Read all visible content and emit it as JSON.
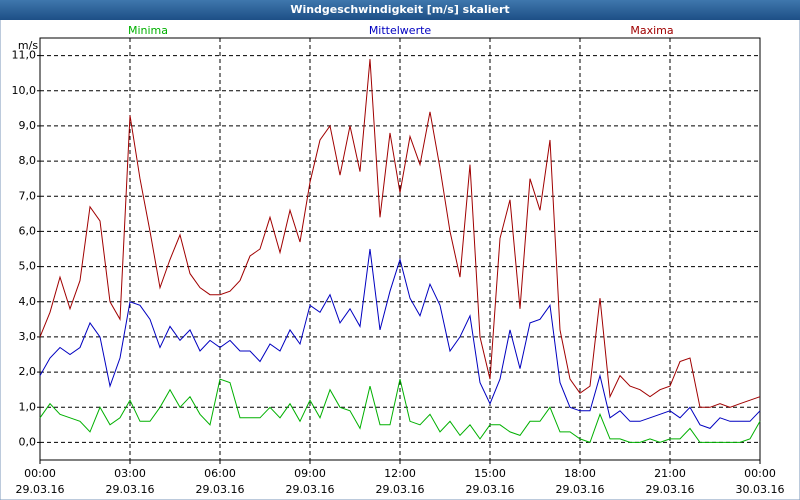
{
  "chart_data": {
    "type": "line",
    "title": "Windgeschwindigkeit [m/s] skaliert",
    "y_label": "m/s",
    "x": [
      0,
      20,
      40,
      60,
      80,
      100,
      120,
      140,
      160,
      180,
      200,
      220,
      240,
      260,
      280,
      300,
      320,
      340,
      360,
      380,
      400,
      420,
      440,
      460,
      480,
      500,
      520,
      540,
      560,
      580,
      600,
      620,
      640,
      660,
      680,
      700,
      720,
      740,
      760,
      780,
      800,
      820,
      840,
      860,
      880,
      900,
      920,
      940,
      960,
      980,
      1000,
      1020,
      1040,
      1060,
      1080,
      1100,
      1120,
      1140,
      1160,
      1180,
      1200,
      1220,
      1240,
      1260,
      1280,
      1300,
      1320,
      1340,
      1360,
      1380,
      1400,
      1420,
      1440
    ],
    "xlim": [
      0,
      1440
    ],
    "xticks": [
      {
        "value": 0,
        "label": [
          "00:00",
          "29.03.16"
        ]
      },
      {
        "value": 180,
        "label": [
          "03:00",
          "29.03.16"
        ]
      },
      {
        "value": 360,
        "label": [
          "06:00",
          "29.03.16"
        ]
      },
      {
        "value": 540,
        "label": [
          "09:00",
          "29.03.16"
        ]
      },
      {
        "value": 720,
        "label": [
          "12:00",
          "29.03.16"
        ]
      },
      {
        "value": 900,
        "label": [
          "15:00",
          "29.03.16"
        ]
      },
      {
        "value": 1080,
        "label": [
          "18:00",
          "29.03.16"
        ]
      },
      {
        "value": 1260,
        "label": [
          "21:00",
          "29.03.16"
        ]
      },
      {
        "value": 1440,
        "label": [
          "00:00",
          "30.03.16"
        ]
      }
    ],
    "ylim": [
      -0.5,
      11.5
    ],
    "yticks": [
      {
        "value": 0,
        "label": "0,0"
      },
      {
        "value": 1,
        "label": "1,0"
      },
      {
        "value": 2,
        "label": "2,0"
      },
      {
        "value": 3,
        "label": "3,0"
      },
      {
        "value": 4,
        "label": "4,0"
      },
      {
        "value": 5,
        "label": "5,0"
      },
      {
        "value": 6,
        "label": "6,0"
      },
      {
        "value": 7,
        "label": "7,0"
      },
      {
        "value": 8,
        "label": "8,0"
      },
      {
        "value": 9,
        "label": "9,0"
      },
      {
        "value": 10,
        "label": "10,0"
      },
      {
        "value": 11,
        "label": "11,0"
      }
    ],
    "grid": true,
    "series": [
      {
        "name": "Minima",
        "color": "#00b000",
        "values": [
          0.7,
          1.1,
          0.8,
          0.7,
          0.6,
          0.3,
          1.0,
          0.5,
          0.7,
          1.2,
          0.6,
          0.6,
          1.0,
          1.5,
          1.0,
          1.3,
          0.8,
          0.5,
          1.8,
          1.7,
          0.7,
          0.7,
          0.7,
          1.0,
          0.7,
          1.1,
          0.6,
          1.2,
          0.7,
          1.5,
          1.0,
          0.9,
          0.4,
          1.6,
          0.5,
          0.5,
          1.8,
          0.6,
          0.5,
          0.8,
          0.3,
          0.6,
          0.2,
          0.5,
          0.1,
          0.5,
          0.5,
          0.3,
          0.2,
          0.6,
          0.6,
          1.0,
          0.3,
          0.3,
          0.1,
          0.0,
          0.8,
          0.1,
          0.1,
          0.0,
          0.0,
          0.1,
          0.0,
          0.1,
          0.1,
          0.4,
          0.0,
          0.0,
          0.0,
          0.0,
          0.0,
          0.1,
          0.6
        ]
      },
      {
        "name": "Mittelwerte",
        "color": "#0000c0",
        "values": [
          1.9,
          2.4,
          2.7,
          2.5,
          2.7,
          3.4,
          3.0,
          1.6,
          2.4,
          4.0,
          3.9,
          3.5,
          2.7,
          3.3,
          2.9,
          3.2,
          2.6,
          2.9,
          2.7,
          2.9,
          2.6,
          2.6,
          2.3,
          2.8,
          2.6,
          3.2,
          2.8,
          3.9,
          3.7,
          4.2,
          3.4,
          3.8,
          3.3,
          5.5,
          3.2,
          4.3,
          5.2,
          4.1,
          3.6,
          4.5,
          3.9,
          2.6,
          3.0,
          3.6,
          1.7,
          1.1,
          1.8,
          3.2,
          2.1,
          3.4,
          3.5,
          3.9,
          1.7,
          1.0,
          0.9,
          0.9,
          1.9,
          0.7,
          0.9,
          0.6,
          0.6,
          0.7,
          0.8,
          0.9,
          0.7,
          1.0,
          0.5,
          0.4,
          0.7,
          0.6,
          0.6,
          0.6,
          0.9
        ]
      },
      {
        "name": "Maxima",
        "color": "#a00000",
        "values": [
          3.0,
          3.7,
          4.7,
          3.8,
          4.6,
          6.7,
          6.3,
          4.0,
          3.5,
          9.3,
          7.5,
          6.0,
          4.4,
          5.2,
          5.9,
          4.8,
          4.4,
          4.2,
          4.2,
          4.3,
          4.6,
          5.3,
          5.5,
          6.4,
          5.4,
          6.6,
          5.7,
          7.4,
          8.6,
          9.0,
          7.6,
          9.0,
          7.7,
          10.9,
          6.4,
          8.8,
          7.1,
          8.7,
          7.9,
          9.4,
          7.8,
          6.0,
          4.7,
          7.9,
          3.0,
          1.8,
          5.8,
          6.9,
          3.8,
          7.5,
          6.6,
          8.6,
          3.2,
          1.8,
          1.4,
          1.6,
          4.1,
          1.3,
          1.9,
          1.6,
          1.5,
          1.3,
          1.5,
          1.6,
          2.3,
          2.4,
          1.0,
          1.0,
          1.1,
          1.0,
          1.1,
          1.2,
          1.3
        ]
      }
    ]
  }
}
